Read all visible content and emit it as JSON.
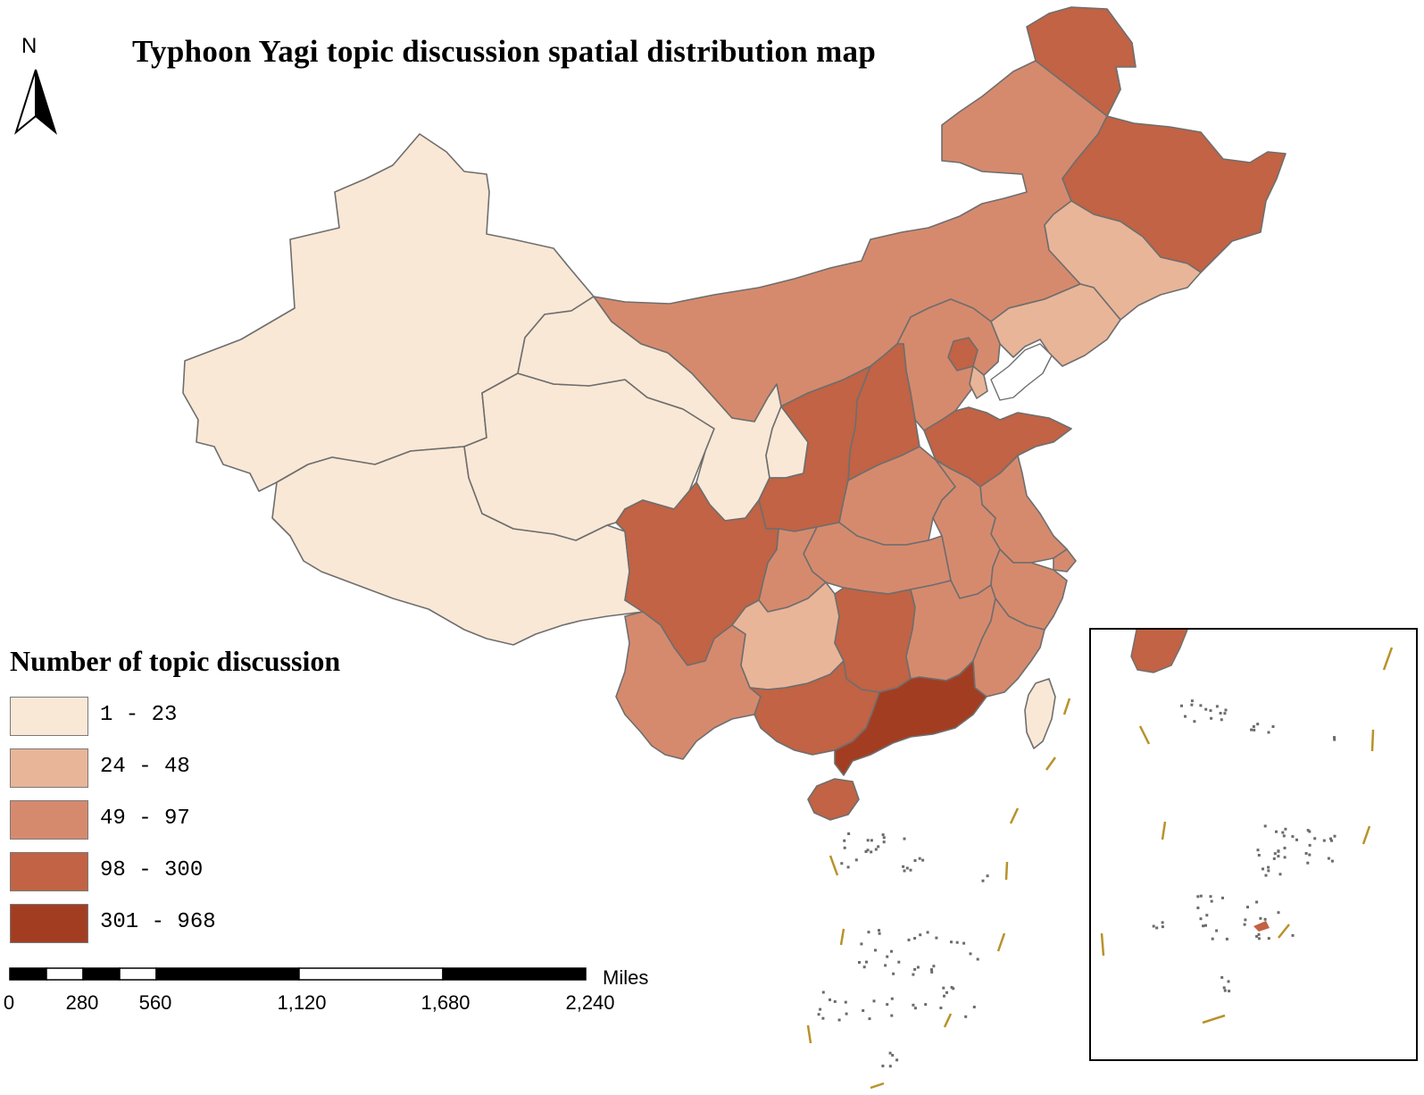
{
  "title": "Typhoon Yagi topic discussion spatial distribution map",
  "north_arrow": {
    "label": "N",
    "icon": "north-arrow-icon"
  },
  "legend": {
    "title": "Number of topic discussion",
    "classes": [
      {
        "label": "1 - 23",
        "color": "#fae8d6"
      },
      {
        "label": "24 - 48",
        "color": "#e9b598"
      },
      {
        "label": "49 - 97",
        "color": "#d68a6d"
      },
      {
        "label": "98 - 300",
        "color": "#c16344"
      },
      {
        "label": "301 - 968",
        "color": "#a33d22"
      }
    ]
  },
  "scale_bar": {
    "unit": "Miles",
    "ticks": [
      "0",
      "280",
      "560",
      "1,120",
      "1,680",
      "2,240"
    ]
  },
  "border_color": "#6e6e6e",
  "dash_line_color": "#b8922a",
  "regions": [
    {
      "name": "Xinjiang",
      "class": 0
    },
    {
      "name": "Tibet",
      "class": 0
    },
    {
      "name": "Qinghai",
      "class": 0
    },
    {
      "name": "Gansu",
      "class": 0
    },
    {
      "name": "Ningxia",
      "class": 0
    },
    {
      "name": "Inner Mongolia",
      "class": 2
    },
    {
      "name": "Heilongjiang",
      "class": 3
    },
    {
      "name": "Jilin",
      "class": 1
    },
    {
      "name": "Liaoning",
      "class": 1
    },
    {
      "name": "Hebei",
      "class": 2
    },
    {
      "name": "Beijing",
      "class": 3
    },
    {
      "name": "Tianjin",
      "class": 1
    },
    {
      "name": "Shanxi",
      "class": 3
    },
    {
      "name": "Shaanxi",
      "class": 3
    },
    {
      "name": "Shandong",
      "class": 3
    },
    {
      "name": "Henan",
      "class": 2
    },
    {
      "name": "Jiangsu",
      "class": 2
    },
    {
      "name": "Anhui",
      "class": 2
    },
    {
      "name": "Hubei",
      "class": 2
    },
    {
      "name": "Chongqing",
      "class": 2
    },
    {
      "name": "Sichuan",
      "class": 3
    },
    {
      "name": "Yunnan",
      "class": 2
    },
    {
      "name": "Guizhou",
      "class": 1
    },
    {
      "name": "Hunan",
      "class": 3
    },
    {
      "name": "Jiangxi",
      "class": 2
    },
    {
      "name": "Zhejiang",
      "class": 2
    },
    {
      "name": "Shanghai",
      "class": 2
    },
    {
      "name": "Fujian",
      "class": 2
    },
    {
      "name": "Guangxi",
      "class": 3
    },
    {
      "name": "Guangdong",
      "class": 4
    },
    {
      "name": "Hainan",
      "class": 3
    },
    {
      "name": "Taiwan",
      "class": 0
    }
  ]
}
